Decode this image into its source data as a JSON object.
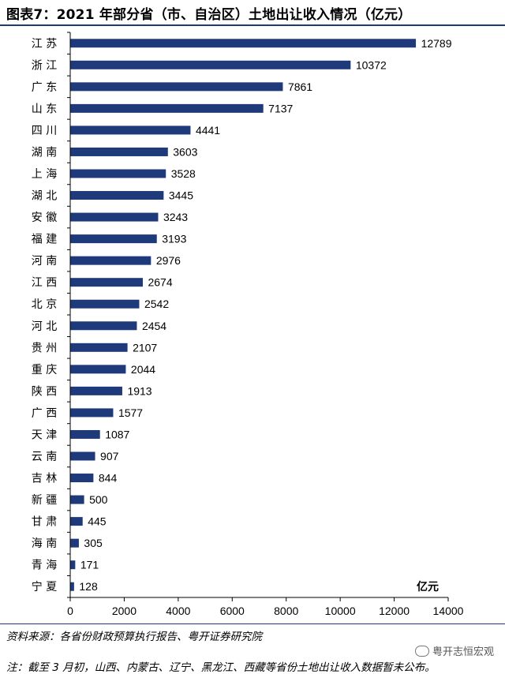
{
  "title": "图表7：2021 年部分省（市、自治区）土地出让收入情况（亿元）",
  "chart_data": {
    "type": "bar",
    "orientation": "horizontal",
    "unit_label": "亿元",
    "categories": [
      "江 苏",
      "浙 江",
      "广 东",
      "山 东",
      "四 川",
      "湖 南",
      "上 海",
      "湖 北",
      "安 徽",
      "福 建",
      "河 南",
      "江 西",
      "北 京",
      "河 北",
      "贵 州",
      "重 庆",
      "陕 西",
      "广 西",
      "天 津",
      "云 南",
      "吉 林",
      "新 疆",
      "甘 肃",
      "海 南",
      "青 海",
      "宁 夏"
    ],
    "values": [
      12789,
      10372,
      7861,
      7137,
      4441,
      3603,
      3528,
      3445,
      3243,
      3193,
      2976,
      2674,
      2542,
      2454,
      2107,
      2044,
      1913,
      1577,
      1087,
      907,
      844,
      500,
      445,
      305,
      171,
      128
    ],
    "xlim": [
      0,
      14000
    ],
    "xticks": [
      "0",
      "2000",
      "4000",
      "6000",
      "8000",
      "10000",
      "12000",
      "14000"
    ],
    "bar_color": "#1f3a7a",
    "grid": false
  },
  "source": "资料来源：各省份财政预算执行报告、粤开证券研究院",
  "note": "注：截至 3 月初，山西、内蒙古、辽宁、黑龙江、西藏等省份土地出让收入数据暂未公布。",
  "watermark": "粤开志恒宏观"
}
